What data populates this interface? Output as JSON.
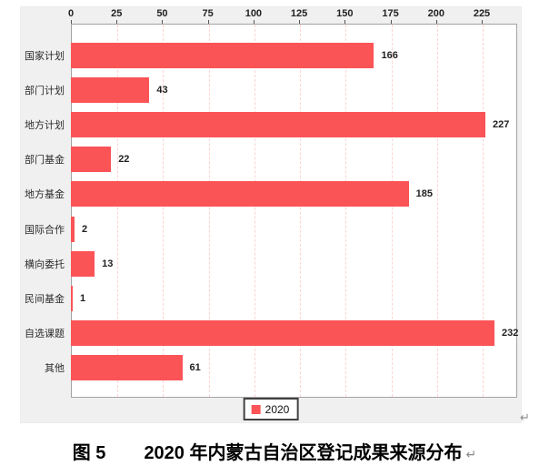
{
  "chart_data": {
    "type": "bar",
    "orientation": "horizontal",
    "categories": [
      "国家计划",
      "部门计划",
      "地方计划",
      "部门基金",
      "地方基金",
      "国际合作",
      "横向委托",
      "民间基金",
      "自选课题",
      "其他"
    ],
    "series": [
      {
        "name": "2020",
        "values": [
          166,
          43,
          227,
          22,
          185,
          2,
          13,
          1,
          232,
          61
        ]
      }
    ],
    "x_ticks": [
      0,
      25,
      50,
      75,
      100,
      125,
      150,
      175,
      200,
      225
    ],
    "xlim": [
      0,
      244
    ],
    "grid": "vertical-dashed",
    "legend_position": "bottom",
    "bar_color": "#fa5457",
    "gridline_color": "#ffd2d2",
    "title": ""
  },
  "legend": {
    "label": "2020"
  },
  "caption": {
    "figure_no": "图 5",
    "title": "2020 年内蒙古自治区登记成果来源分布"
  },
  "marks": {
    "paragraph_mark": "↵"
  }
}
